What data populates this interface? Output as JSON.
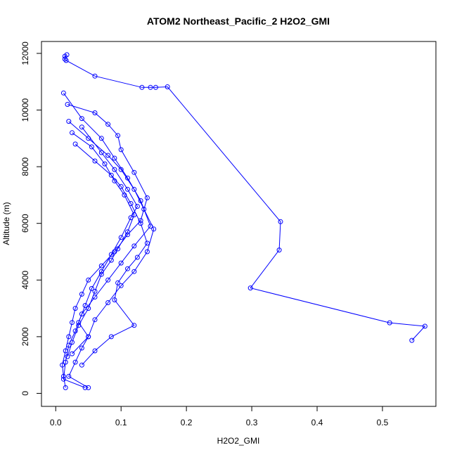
{
  "chart_data": {
    "type": "line",
    "title": "ATOM2 Northeast_Pacific_2 H2O2_GMI",
    "xlabel": "H2O2_GMI",
    "ylabel": "Altitude (m)",
    "xlim": [
      -0.0218,
      0.5818
    ],
    "ylim": [
      -460,
      12420
    ],
    "x_ticks": [
      0.0,
      0.1,
      0.2,
      0.3,
      0.4,
      0.5
    ],
    "x_tick_labels": [
      "0.0",
      "0.1",
      "0.2",
      "0.3",
      "0.4",
      "0.5"
    ],
    "y_ticks": [
      0,
      2000,
      4000,
      6000,
      8000,
      10000,
      12000
    ],
    "y_tick_labels": [
      "0",
      "2000",
      "4000",
      "6000",
      "8000",
      "10000",
      "12000"
    ],
    "grid": false,
    "legend": "none",
    "series_color": "#0000ff",
    "series": [
      {
        "x": [
          0.017,
          0.014,
          0.014,
          0.016,
          0.06,
          0.132,
          0.145,
          0.153,
          0.171,
          0.344,
          0.342,
          0.298,
          0.511,
          0.565,
          0.545
        ],
        "y": [
          11950,
          11900,
          11800,
          11750,
          11200,
          10800,
          10800,
          10800,
          10820,
          6060,
          5060,
          3720,
          2490,
          2370,
          1870
        ]
      },
      {
        "x": [
          0.018,
          0.06,
          0.08,
          0.095,
          0.1,
          0.12,
          0.14,
          0.13,
          0.11,
          0.09,
          0.07,
          0.05,
          0.04,
          0.03,
          0.025,
          0.02,
          0.015,
          0.01,
          0.012,
          0.015
        ],
        "y": [
          10200,
          9900,
          9500,
          9100,
          8600,
          7800,
          6900,
          6100,
          5600,
          5000,
          4500,
          4000,
          3500,
          3000,
          2500,
          2000,
          1500,
          1000,
          600,
          200
        ]
      },
      {
        "x": [
          0.012,
          0.04,
          0.07,
          0.09,
          0.11,
          0.13,
          0.145,
          0.12,
          0.1,
          0.08,
          0.06,
          0.04,
          0.03,
          0.02,
          0.015,
          0.012,
          0.045
        ],
        "y": [
          10600,
          9700,
          9000,
          8300,
          7600,
          6800,
          5900,
          5200,
          4600,
          4000,
          3400,
          2800,
          2200,
          1700,
          1100,
          500,
          200
        ]
      },
      {
        "x": [
          0.02,
          0.05,
          0.08,
          0.1,
          0.12,
          0.135,
          0.15,
          0.14,
          0.12,
          0.1,
          0.08,
          0.06,
          0.05,
          0.04,
          0.03,
          0.02,
          0.05
        ],
        "y": [
          9600,
          9000,
          8400,
          7900,
          7200,
          6500,
          5800,
          5000,
          4300,
          3800,
          3200,
          2600,
          2000,
          1600,
          1100,
          600,
          200
        ]
      },
      {
        "x": [
          0.025,
          0.055,
          0.075,
          0.09,
          0.105,
          0.12,
          0.11,
          0.095,
          0.085,
          0.07,
          0.06,
          0.05,
          0.035,
          0.025,
          0.018
        ],
        "y": [
          9200,
          8700,
          8100,
          7500,
          7000,
          6300,
          5700,
          5100,
          4700,
          4200,
          3600,
          3000,
          2400,
          1800,
          1300
        ]
      },
      {
        "x": [
          0.03,
          0.06,
          0.085,
          0.1,
          0.115,
          0.13,
          0.14,
          0.125,
          0.11,
          0.095,
          0.09,
          0.12,
          0.085,
          0.06,
          0.04
        ],
        "y": [
          8800,
          8200,
          7700,
          7300,
          6700,
          6000,
          5300,
          4800,
          4400,
          3900,
          3300,
          2400,
          2000,
          1500,
          1000
        ]
      },
      {
        "x": [
          0.04,
          0.07,
          0.09,
          0.11,
          0.125,
          0.115,
          0.1,
          0.085,
          0.07,
          0.055,
          0.045,
          0.035,
          0.05,
          0.025
        ],
        "y": [
          9400,
          8500,
          7900,
          7200,
          6600,
          6200,
          5500,
          4900,
          4300,
          3700,
          3100,
          2500,
          2000,
          1400
        ]
      }
    ]
  }
}
